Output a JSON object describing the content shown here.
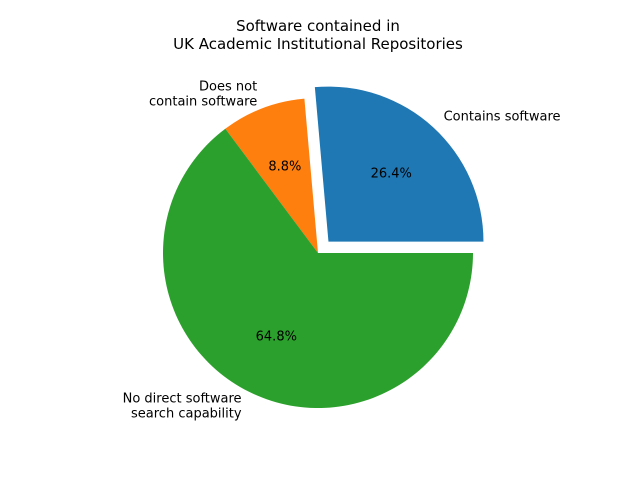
{
  "chart_data": {
    "type": "pie",
    "title": [
      "Software contained in",
      "UK Academic Institutional Repositories"
    ],
    "slices": [
      {
        "label": [
          "Contains software"
        ],
        "percent_label": "26.4%",
        "value": 26.4,
        "color": "#1f77b4",
        "exploded": true
      },
      {
        "label": [
          "Does not",
          "contain software"
        ],
        "percent_label": "8.8%",
        "value": 8.8,
        "color": "#ff7f0e",
        "exploded": false
      },
      {
        "label": [
          "No direct software",
          "search capability"
        ],
        "percent_label": "64.8%",
        "value": 64.8,
        "color": "#2ca02c",
        "exploded": false
      }
    ],
    "start_angle_deg": 0,
    "direction": "counterclockwise"
  }
}
